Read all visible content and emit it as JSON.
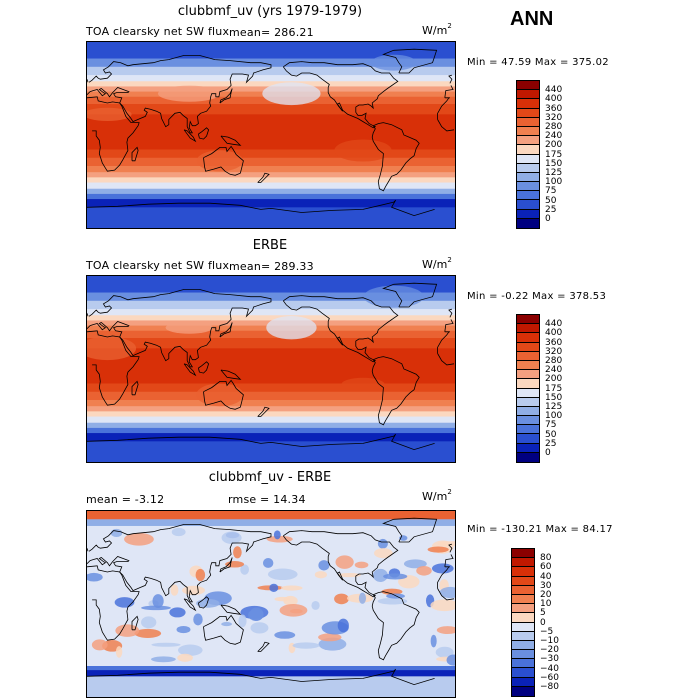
{
  "header": {
    "season": "ANN"
  },
  "panels": [
    {
      "title": "clubbmf_uv (yrs 1979-1979)",
      "variable": "TOA clearsky net SW flux",
      "stat": "mean= 286.21",
      "units": "W/m",
      "units_sup": "2",
      "minmax": "Min =  47.59 Max = 375.02",
      "levels": [
        "440",
        "400",
        "360",
        "320",
        "280",
        "240",
        "200",
        "175",
        "150",
        "125",
        "100",
        "75",
        "50",
        "25",
        "0"
      ],
      "colors": [
        "#8b0000",
        "#c01800",
        "#d83008",
        "#e24818",
        "#ea6232",
        "#f08050",
        "#f4a080",
        "#fbd8c0",
        "#dfe6f6",
        "#b8cbee",
        "#90aee6",
        "#6a8fe0",
        "#4a72da",
        "#2a4fd0",
        "#0a22b8",
        "#000080"
      ],
      "kind": "abs",
      "lowlat_shift": 0
    },
    {
      "title": "ERBE",
      "variable": "TOA clearsky net SW flux",
      "stat": "mean= 289.33",
      "units": "W/m",
      "units_sup": "2",
      "minmax": "Min =  -0.22 Max = 378.53",
      "levels": [
        "440",
        "400",
        "360",
        "320",
        "280",
        "240",
        "200",
        "175",
        "150",
        "125",
        "100",
        "75",
        "50",
        "25",
        "0"
      ],
      "colors": [
        "#8b0000",
        "#c01800",
        "#d83008",
        "#e24818",
        "#ea6232",
        "#f08050",
        "#f4a080",
        "#fbd8c0",
        "#dfe6f6",
        "#b8cbee",
        "#90aee6",
        "#6a8fe0",
        "#4a72da",
        "#2a4fd0",
        "#0a22b8",
        "#000080"
      ],
      "kind": "abs",
      "lowlat_shift": 1
    },
    {
      "title": "clubbmf_uv - ERBE",
      "stat_left": "mean =   -3.12",
      "stat_mid": "rmse =   14.34",
      "units": "W/m",
      "units_sup": "2",
      "minmax": "Min = -130.21 Max =  84.17",
      "levels": [
        "80",
        "60",
        "40",
        "30",
        "20",
        "10",
        "5",
        "0",
        "−5",
        "−10",
        "−20",
        "−30",
        "−40",
        "−60",
        "−80"
      ],
      "colors": [
        "#8b0000",
        "#c01800",
        "#d83008",
        "#e24818",
        "#ea6232",
        "#f08050",
        "#f4a080",
        "#fbd8c0",
        "#dfe6f6",
        "#b8cbee",
        "#90aee6",
        "#6a8fe0",
        "#4a72da",
        "#2a4fd0",
        "#0a22b8",
        "#000080"
      ],
      "kind": "diff"
    }
  ]
}
